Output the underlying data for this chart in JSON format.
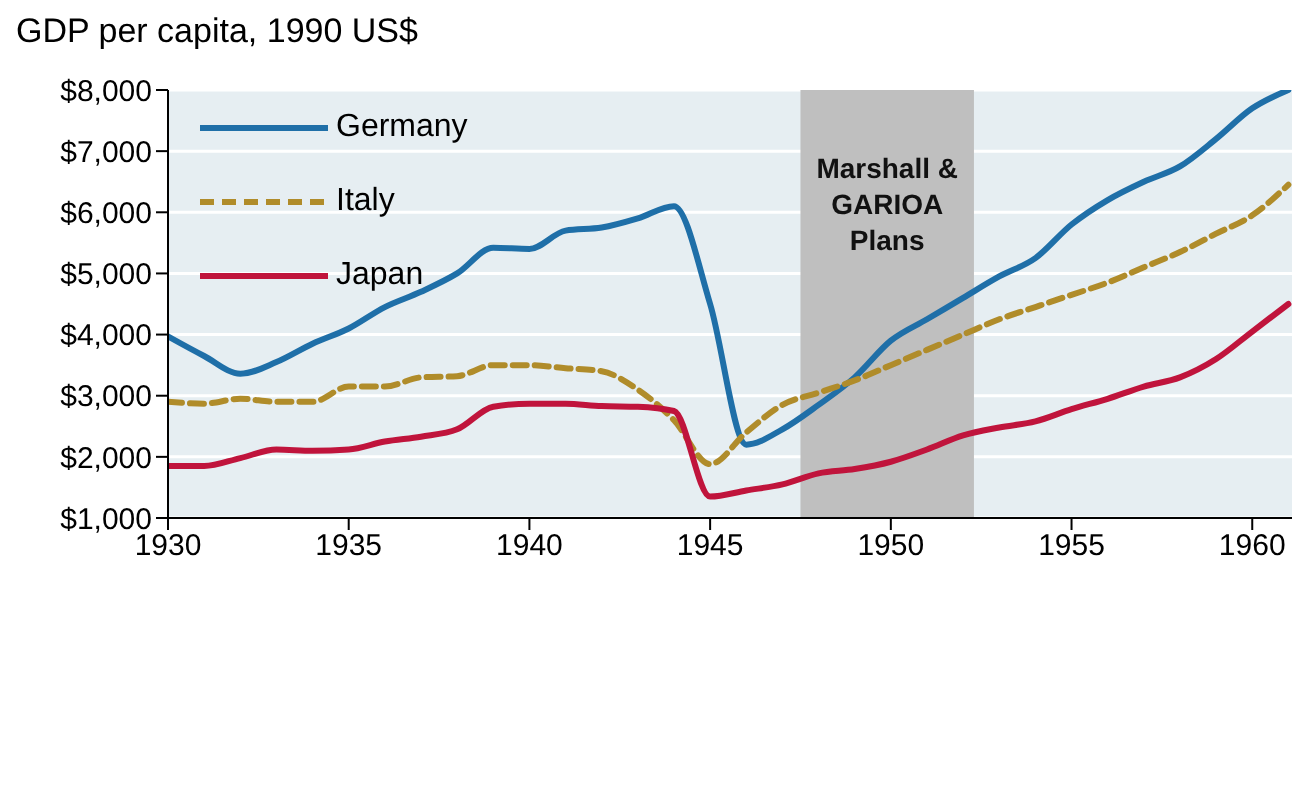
{
  "chart_data": {
    "type": "line",
    "title": "GDP per capita, 1990 US$",
    "x": [
      1930,
      1931,
      1932,
      1933,
      1934,
      1935,
      1936,
      1937,
      1938,
      1939,
      1940,
      1941,
      1942,
      1943,
      1944,
      1945,
      1946,
      1947,
      1948,
      1949,
      1950,
      1951,
      1952,
      1953,
      1954,
      1955,
      1956,
      1957,
      1958,
      1959,
      1960,
      1961
    ],
    "series": [
      {
        "name": "Germany",
        "color": "#1f6fa8",
        "line_style": "solid",
        "values": [
          3970,
          3650,
          3360,
          3550,
          3850,
          4100,
          4450,
          4700,
          5000,
          5420,
          5400,
          5700,
          5750,
          5900,
          6100,
          4500,
          2200,
          2450,
          2850,
          3300,
          3900,
          4250,
          4600,
          4950,
          5250,
          5800,
          6200,
          6500,
          6750,
          7200,
          7700,
          8000
        ]
      },
      {
        "name": "Italy",
        "color": "#b08c2a",
        "line_style": "dashed",
        "values": [
          2900,
          2870,
          2950,
          2900,
          2900,
          3150,
          3150,
          3300,
          3320,
          3500,
          3500,
          3450,
          3400,
          3100,
          2600,
          1880,
          2400,
          2850,
          3050,
          3250,
          3500,
          3750,
          4000,
          4250,
          4450,
          4650,
          4850,
          5100,
          5350,
          5650,
          5950,
          6450
        ]
      },
      {
        "name": "Japan",
        "color": "#c0143c",
        "line_style": "solid",
        "values": [
          1850,
          1850,
          1980,
          2120,
          2100,
          2120,
          2250,
          2330,
          2450,
          2820,
          2870,
          2870,
          2830,
          2820,
          2750,
          1350,
          1450,
          1550,
          1730,
          1800,
          1920,
          2120,
          2350,
          2480,
          2580,
          2780,
          2950,
          3150,
          3300,
          3600,
          4050,
          4500
        ]
      }
    ],
    "xlim": [
      1930,
      1961.1
    ],
    "xticks": [
      1930,
      1935,
      1940,
      1945,
      1950,
      1955,
      1960
    ],
    "ylim": [
      1000,
      8000
    ],
    "yticks": [
      {
        "value": 1000,
        "label": "$1,000"
      },
      {
        "value": 2000,
        "label": "$2,000"
      },
      {
        "value": 3000,
        "label": "$3,000"
      },
      {
        "value": 4000,
        "label": "$4,000"
      },
      {
        "value": 5000,
        "label": "$5,000"
      },
      {
        "value": 6000,
        "label": "$6,000"
      },
      {
        "value": 7000,
        "label": "$7,000"
      },
      {
        "value": 8000,
        "label": "$8,000"
      }
    ],
    "bands": [
      {
        "axis": "x",
        "from": 1947.5,
        "to": 1952.3,
        "label": "Marshall & GARIOA Plans",
        "color": "#bfbfbf"
      }
    ],
    "grid": "y",
    "legend": "top left"
  }
}
